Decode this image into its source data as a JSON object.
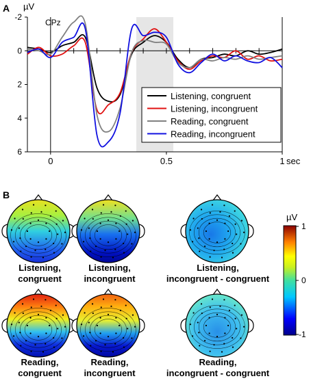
{
  "panel_a": {
    "label": "A",
    "unit": "µV",
    "channel": "CPz",
    "x_unit_label": "sec"
  },
  "panel_b": {
    "label": "B",
    "colorbar": {
      "unit": "µV",
      "ticks": [
        "1",
        "0",
        "-1"
      ],
      "range": [
        -1,
        1
      ]
    },
    "maps": [
      {
        "line1": "Listening,",
        "line2": "congruent"
      },
      {
        "line1": "Listening,",
        "line2": "incongruent"
      },
      {
        "line1": "Listening,",
        "line2": "incongruent - congruent"
      },
      {
        "line1": "Reading,",
        "line2": "congruent"
      },
      {
        "line1": "Reading,",
        "line2": "incongruent"
      },
      {
        "line1": "Reading,",
        "line2": "incongruent - congruent"
      }
    ]
  },
  "chart_data": {
    "type": "line",
    "xlim": [
      -0.1,
      1.0
    ],
    "ylim": [
      6,
      -2
    ],
    "x_ticks": [
      0,
      0.5,
      1
    ],
    "x_tick_labels": [
      "0",
      "0.5",
      "1"
    ],
    "y_ticks": [
      -2,
      0,
      2,
      4,
      6
    ],
    "y_tick_labels": [
      "-2",
      "0",
      "2",
      "4",
      "6"
    ],
    "shaded_window": [
      0.37,
      0.53
    ],
    "legend_position": "bottom-right",
    "x": [
      -0.1,
      -0.05,
      0,
      0.05,
      0.1,
      0.15,
      0.2,
      0.25,
      0.3,
      0.35,
      0.4,
      0.45,
      0.5,
      0.55,
      0.6,
      0.65,
      0.7,
      0.75,
      0.8,
      0.85,
      0.9,
      0.95,
      1.0
    ],
    "series": [
      {
        "name": "Listening, congruent",
        "color": "#000000",
        "values": [
          -0.2,
          -0.1,
          0.1,
          -0.3,
          -0.5,
          -0.8,
          2.2,
          3.0,
          2.6,
          0.2,
          -0.5,
          -0.9,
          -0.5,
          0.5,
          1.0,
          0.5,
          0.4,
          0.2,
          0.3,
          0.0,
          0.2,
          0.1,
          -0.1
        ]
      },
      {
        "name": "Listening, incongruent",
        "color": "#e01010",
        "values": [
          0.2,
          -0.2,
          0.3,
          0.2,
          -0.3,
          -0.5,
          3.5,
          3.2,
          2.5,
          0.1,
          -0.7,
          -1.3,
          -0.5,
          0.6,
          1.1,
          0.6,
          0.3,
          0.4,
          0.0,
          0.5,
          0.3,
          0.6,
          0.5
        ]
      },
      {
        "name": "Reading, congruent",
        "color": "#808080",
        "values": [
          -0.1,
          0.0,
          0.2,
          -0.8,
          -1.7,
          -1.6,
          3.8,
          4.8,
          3.4,
          0.1,
          -0.6,
          -0.5,
          -0.4,
          0.7,
          1.0,
          0.5,
          0.6,
          0.4,
          0.5,
          0.3,
          0.5,
          0.4,
          0.3
        ]
      },
      {
        "name": "Reading, incongruent",
        "color": "#1010e0",
        "values": [
          0.1,
          -0.1,
          0.4,
          -0.5,
          -0.8,
          -1.3,
          5.0,
          5.4,
          3.7,
          -1.3,
          -0.9,
          -1.1,
          -0.8,
          0.8,
          1.3,
          0.7,
          0.2,
          0.6,
          0.3,
          0.6,
          0.7,
          0.4,
          1.0
        ]
      }
    ]
  }
}
